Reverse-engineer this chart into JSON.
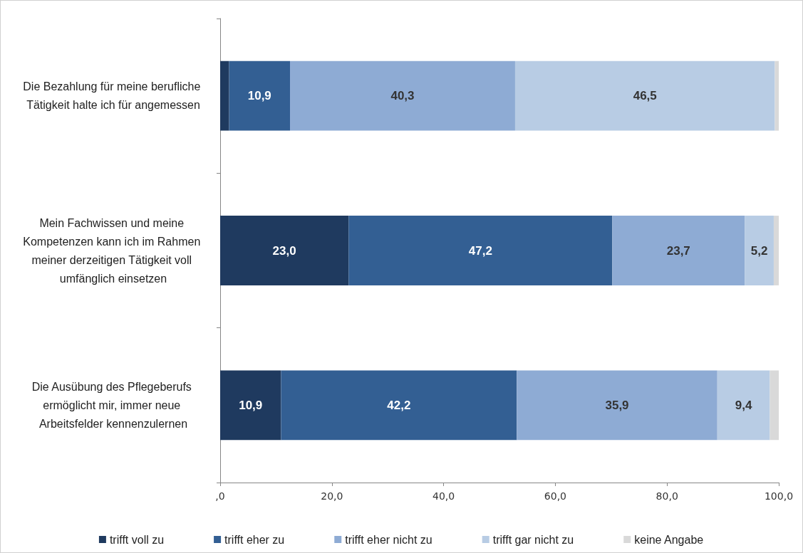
{
  "chart_data": {
    "type": "bar",
    "orientation": "horizontal",
    "stacked": true,
    "categories": [
      "Die Bezahlung für meine berufliche Tätigkeit halte ich für angemessen",
      "Mein Fachwissen und meine Kompetenzen kann ich im Rahmen meiner derzeitigen Tätigkeit voll umfänglich einsetzen",
      "Die Ausübung des Pflegeberufs ermöglicht mir, immer neue Arbeitsfelder kennenzulernen"
    ],
    "series": [
      {
        "name": "trifft voll zu",
        "color": "#1f3a5f",
        "values": [
          1.6,
          23.0,
          10.9
        ],
        "value_labels": [
          null,
          "23,0",
          "10,9"
        ]
      },
      {
        "name": "trifft eher zu",
        "color": "#335f93",
        "values": [
          10.9,
          47.2,
          42.2
        ],
        "value_labels": [
          "10,9",
          "47,2",
          "42,2"
        ]
      },
      {
        "name": "trifft eher nicht zu",
        "color": "#8eabd4",
        "values": [
          40.3,
          23.7,
          35.9
        ],
        "value_labels": [
          "40,3",
          "23,7",
          "35,9"
        ]
      },
      {
        "name": "trifft gar nicht zu",
        "color": "#b8cce4",
        "values": [
          46.5,
          5.2,
          9.4
        ],
        "value_labels": [
          "46,5",
          "5,2",
          "9,4"
        ]
      },
      {
        "name": "keine Angabe",
        "color": "#d9d9d9",
        "values": [
          0.7,
          0.9,
          1.6
        ],
        "value_labels": [
          null,
          null,
          null
        ]
      }
    ],
    "xlim": [
      0,
      100
    ],
    "xticks": [
      {
        "value": 0,
        "label": ",0"
      },
      {
        "value": 20,
        "label": "20,0"
      },
      {
        "value": 40,
        "label": "40,0"
      },
      {
        "value": 60,
        "label": "60,0"
      },
      {
        "value": 80,
        "label": "80,0"
      },
      {
        "value": 100,
        "label": "100,0"
      }
    ],
    "grid": false,
    "legend": "bottom"
  }
}
